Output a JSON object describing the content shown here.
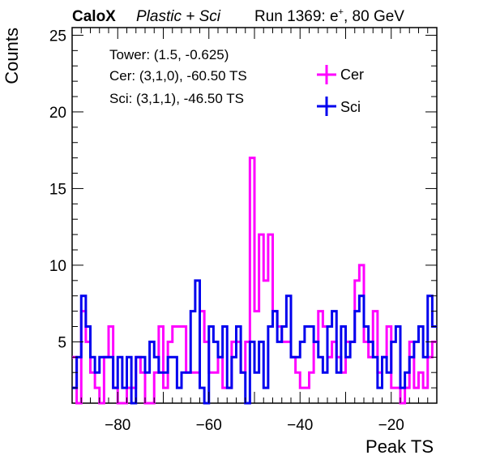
{
  "header": {
    "brand": "CaloX",
    "subtitle": "Plastic + Sci",
    "run": "Run 1369: e",
    "run_sup": "+",
    "run_energy": ", 80 GeV"
  },
  "info": {
    "tower": "Tower: (1.5, -0.625)",
    "cer": "Cer: (3,1,0), -60.50 TS",
    "sci": "Sci: (3,1,1), -46.50 TS"
  },
  "colors": {
    "cer": "#ff00ff",
    "sci": "#0000ee"
  },
  "chart_data": {
    "type": "histogram",
    "xlabel": "Peak TS",
    "ylabel": "Counts",
    "xlim": [
      -90,
      -10
    ],
    "ylim": [
      1,
      25.5
    ],
    "x_ticks": [
      -80,
      -60,
      -40,
      -20
    ],
    "y_ticks": [
      5,
      10,
      15,
      20,
      25
    ],
    "bin_width": 1,
    "bin_start": -90,
    "legend_position": "top-right",
    "series": [
      {
        "name": "Cer",
        "color": "#ff00ff",
        "values": [
          4,
          1,
          7,
          5,
          3,
          2,
          1,
          4,
          6,
          2,
          1,
          1,
          2,
          2,
          4,
          3,
          1,
          1,
          3,
          6,
          2,
          5,
          6,
          6,
          6,
          3,
          3,
          3,
          7,
          5,
          3,
          3,
          4,
          2,
          2,
          5,
          5,
          3,
          5,
          17,
          7,
          12,
          9,
          12,
          7,
          6,
          5,
          5,
          4,
          3,
          2,
          2,
          3,
          5,
          7,
          6,
          4,
          5,
          4,
          3,
          5,
          5,
          9,
          10,
          5,
          4,
          7,
          3,
          4,
          6,
          2,
          2,
          1,
          2,
          5,
          2,
          3,
          2,
          4,
          5
        ]
      },
      {
        "name": "Sci",
        "color": "#0000ee",
        "values": [
          2,
          4,
          8,
          6,
          4,
          3,
          4,
          4,
          4,
          2,
          4,
          2,
          4,
          1,
          4,
          4,
          3,
          5,
          4,
          3,
          3,
          4,
          4,
          2,
          3,
          3,
          7,
          9,
          2,
          1,
          6,
          5,
          4,
          6,
          2,
          4,
          6,
          3,
          1,
          5,
          3,
          5,
          2,
          6,
          7,
          5,
          6,
          8,
          4,
          4,
          5,
          6,
          6,
          5,
          4,
          3,
          6,
          7,
          3,
          6,
          4,
          5,
          7,
          8,
          6,
          5,
          4,
          2,
          4,
          3,
          5,
          6,
          2,
          3,
          4,
          5,
          6,
          4,
          8,
          6
        ]
      }
    ]
  }
}
